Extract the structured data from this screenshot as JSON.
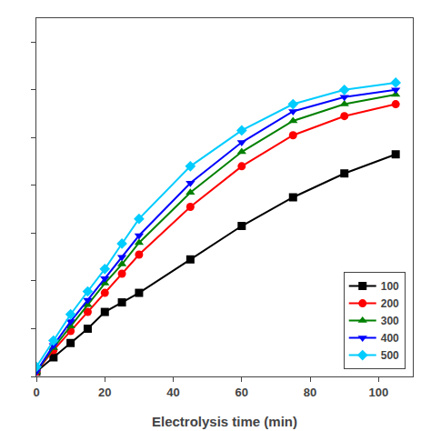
{
  "chart_data": {
    "type": "line",
    "xlabel": "Electrolysis time (min)",
    "series": [
      {
        "name": "100",
        "color": "#000000",
        "marker": "square",
        "x": [
          0,
          5,
          10,
          15,
          20,
          25,
          30,
          45,
          60,
          75,
          90,
          105
        ],
        "values": [
          0.01,
          0.04,
          0.07,
          0.1,
          0.135,
          0.155,
          0.175,
          0.245,
          0.315,
          0.375,
          0.425,
          0.465
        ]
      },
      {
        "name": "200",
        "color": "#ff0000",
        "marker": "circle",
        "x": [
          0,
          5,
          10,
          15,
          20,
          25,
          30,
          45,
          60,
          75,
          90,
          105
        ],
        "values": [
          0.01,
          0.055,
          0.095,
          0.135,
          0.175,
          0.215,
          0.255,
          0.355,
          0.44,
          0.505,
          0.545,
          0.57
        ]
      },
      {
        "name": "300",
        "color": "#008000",
        "marker": "triangle-up",
        "x": [
          0,
          5,
          10,
          15,
          20,
          25,
          30,
          45,
          60,
          75,
          90,
          105
        ],
        "values": [
          0.01,
          0.06,
          0.105,
          0.15,
          0.195,
          0.235,
          0.28,
          0.385,
          0.47,
          0.535,
          0.57,
          0.59
        ]
      },
      {
        "name": "400",
        "color": "#0000ff",
        "marker": "triangle-down",
        "x": [
          0,
          5,
          10,
          15,
          20,
          25,
          30,
          45,
          60,
          75,
          90,
          105
        ],
        "values": [
          0.01,
          0.065,
          0.115,
          0.16,
          0.205,
          0.25,
          0.295,
          0.405,
          0.49,
          0.555,
          0.585,
          0.6
        ]
      },
      {
        "name": "500",
        "color": "#00ccff",
        "marker": "diamond",
        "x": [
          0,
          5,
          10,
          15,
          20,
          25,
          30,
          45,
          60,
          75,
          90,
          105
        ],
        "values": [
          0.02,
          0.075,
          0.13,
          0.178,
          0.225,
          0.278,
          0.33,
          0.44,
          0.515,
          0.57,
          0.6,
          0.615
        ]
      }
    ],
    "xlim": [
      0,
      110
    ],
    "xticks": [
      0,
      20,
      40,
      60,
      80,
      100
    ],
    "ylim": [
      0,
      0.75
    ],
    "yticks": [
      0,
      0.1,
      0.2,
      0.3,
      0.4,
      0.5,
      0.6,
      0.7
    ],
    "tick_labels": "x",
    "grid": false,
    "legend": "lower right"
  }
}
